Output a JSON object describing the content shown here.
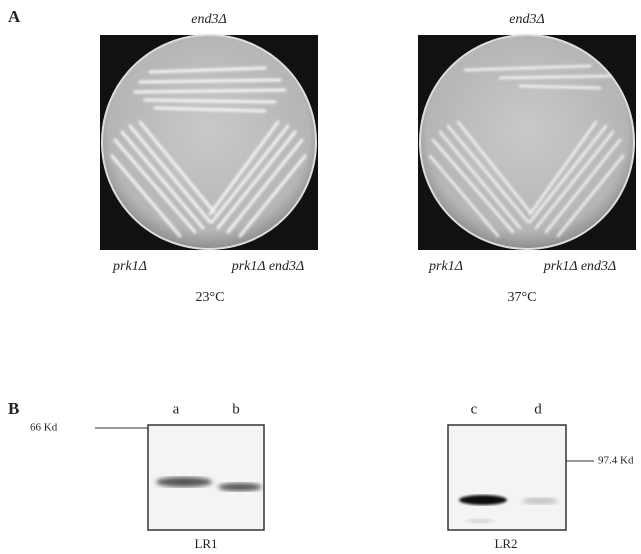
{
  "panel_a": {
    "label": "A",
    "plates": [
      {
        "top": "end3Δ",
        "left": "prk1Δ",
        "right": "prk1Δ end3Δ",
        "temperature": "23°C"
      },
      {
        "top": "end3Δ",
        "left": "prk1Δ",
        "right": "prk1Δ end3Δ",
        "temperature": "37°C"
      }
    ]
  },
  "panel_b": {
    "label": "B",
    "blots": [
      {
        "lanes": [
          "a",
          "b"
        ],
        "marker": "66 Kd",
        "name": "LR1"
      },
      {
        "lanes": [
          "c",
          "d"
        ],
        "marker": "97.4 Kd",
        "name": "LR2"
      }
    ]
  }
}
